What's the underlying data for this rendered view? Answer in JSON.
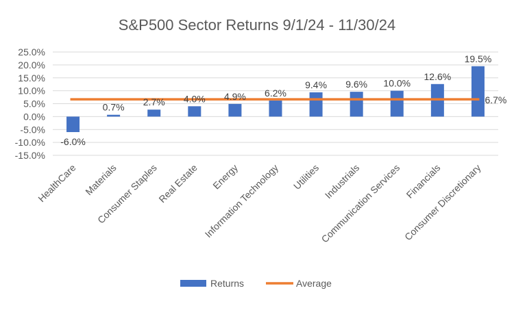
{
  "chart_data": {
    "type": "bar",
    "title": "S&P500 Sector Returns 9/1/24 - 11/30/24",
    "xlabel": "",
    "ylabel": "",
    "ylim": [
      -15,
      25
    ],
    "yticks": [
      -15,
      -10,
      -5,
      0,
      5,
      10,
      15,
      20,
      25
    ],
    "ytick_labels": [
      "-15.0%",
      "-10.0%",
      "-5.0%",
      "0.0%",
      "5.0%",
      "10.0%",
      "15.0%",
      "20.0%",
      "25.0%"
    ],
    "grid": true,
    "legend": "bottom",
    "categories": [
      "HealthCare",
      "Materials",
      "Consumer Staples",
      "Real Estate",
      "Energy",
      "Information Technology",
      "Utilities",
      "Industrials",
      "Communication Services",
      "Financials",
      "Consumer Discretionary"
    ],
    "series": [
      {
        "name": "Returns",
        "kind": "bar",
        "color": "#4472C4",
        "values": [
          -6.0,
          0.7,
          2.7,
          4.0,
          4.9,
          6.2,
          9.4,
          9.6,
          10.0,
          12.6,
          19.5
        ],
        "labels": [
          "-6.0%",
          "0.7%",
          "2.7%",
          "4.0%",
          "4.9%",
          "6.2%",
          "9.4%",
          "9.6%",
          "10.0%",
          "12.6%",
          "19.5%"
        ]
      },
      {
        "name": "Average",
        "kind": "line",
        "color": "#ED7D31",
        "value": 6.7,
        "label": "6.7%"
      }
    ]
  }
}
